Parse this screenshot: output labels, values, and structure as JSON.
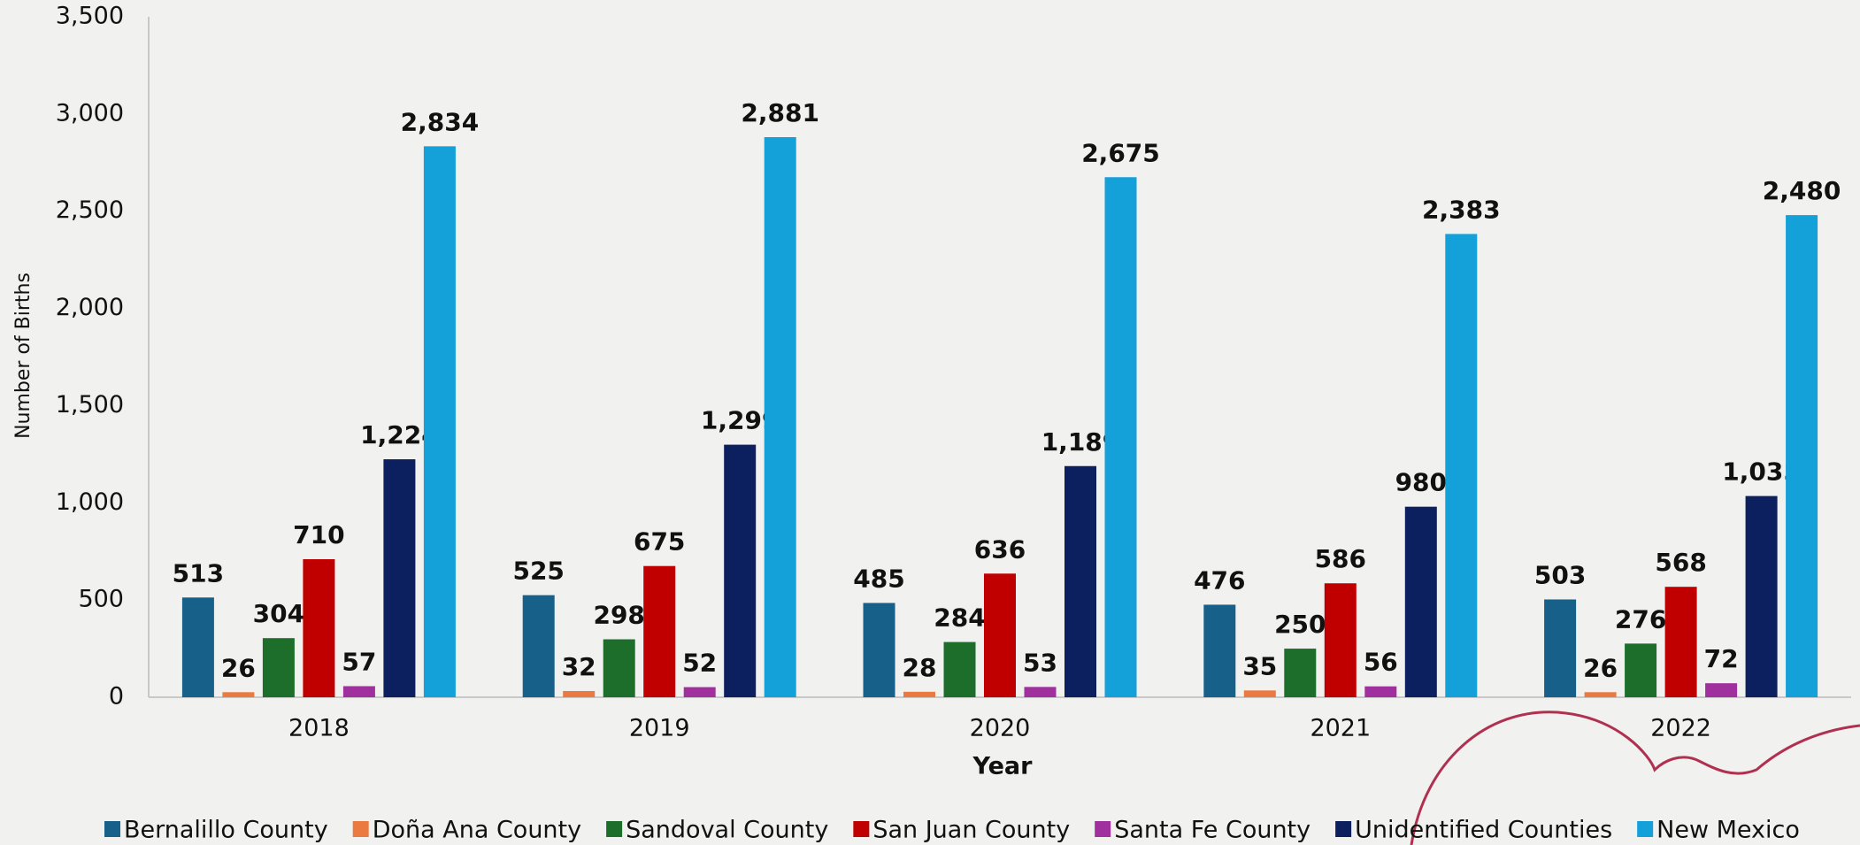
{
  "chart_data": {
    "type": "bar",
    "x_label": "Year",
    "y_label": "Number of Births",
    "categories": [
      "2018",
      "2019",
      "2020",
      "2021",
      "2022"
    ],
    "series": [
      {
        "name": "Bernalillo County",
        "color": "#17608a",
        "values": [
          513,
          525,
          485,
          476,
          503
        ]
      },
      {
        "name": "Doña Ana County",
        "color": "#ea7a3f",
        "values": [
          26,
          32,
          28,
          35,
          26
        ]
      },
      {
        "name": "Sandoval County",
        "color": "#1d6e2b",
        "values": [
          304,
          298,
          284,
          250,
          276
        ]
      },
      {
        "name": "San Juan County",
        "color": "#c00000",
        "values": [
          710,
          675,
          636,
          586,
          568
        ]
      },
      {
        "name": "Santa Fe County",
        "color": "#a0309e",
        "values": [
          57,
          52,
          53,
          56,
          72
        ]
      },
      {
        "name": "Unidentified Counties",
        "color": "#0c1f5e",
        "values": [
          1224,
          1299,
          1189,
          980,
          1035
        ],
        "value_labels": [
          "1,224",
          "1,299",
          "1,189",
          "980",
          "1,035"
        ]
      },
      {
        "name": "New Mexico",
        "color": "#14a0d8",
        "values": [
          2834,
          2881,
          2675,
          2383,
          2480
        ],
        "value_labels": [
          "2,834",
          "2,881",
          "2,675",
          "2,383",
          "2,480"
        ]
      }
    ],
    "ylim": [
      0,
      3500
    ],
    "yticks": [
      0,
      500,
      {
        "value": 1000,
        "label": "1,000"
      },
      {
        "value": 1500,
        "label": "1,500"
      },
      {
        "value": 2000,
        "label": "2,000"
      },
      {
        "value": 2500,
        "label": "2,500"
      },
      {
        "value": 3000,
        "label": "3,000"
      },
      {
        "value": 3500,
        "label": "3,500"
      }
    ],
    "grid": false,
    "legend": "bottom"
  }
}
